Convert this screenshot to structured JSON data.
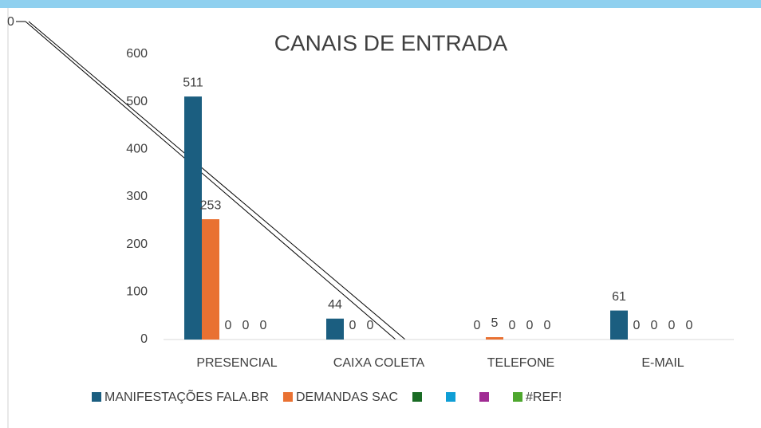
{
  "chart_data": {
    "type": "bar",
    "title": "CANAIS DE ENTRADA",
    "categories": [
      "PRESENCIAL",
      "CAIXA COLETA",
      "TELEFONE",
      "E-MAIL"
    ],
    "series": [
      {
        "name": "MANIFESTAÇÕES FALA.BR",
        "color": "#1b5e80",
        "values": [
          511,
          44,
          0,
          61
        ]
      },
      {
        "name": "DEMANDAS SAC",
        "color": "#e97132",
        "values": [
          253,
          0,
          5,
          0
        ]
      },
      {
        "name": null,
        "color": "#196b24",
        "values": [
          0,
          0,
          0,
          0
        ]
      },
      {
        "name": null,
        "color": "#0f9ed5",
        "values": [
          0,
          null,
          0,
          0
        ]
      },
      {
        "name": null,
        "color": "#a02b93",
        "values": [
          0,
          null,
          0,
          0
        ]
      },
      {
        "name": "#REF!",
        "color": "#4ea72e",
        "values": [
          null,
          null,
          null,
          null
        ]
      }
    ],
    "stray_label": "0",
    "ylim": [
      0,
      600
    ],
    "yticks": [
      0,
      100,
      200,
      300,
      400,
      500,
      600
    ],
    "grid": false
  }
}
